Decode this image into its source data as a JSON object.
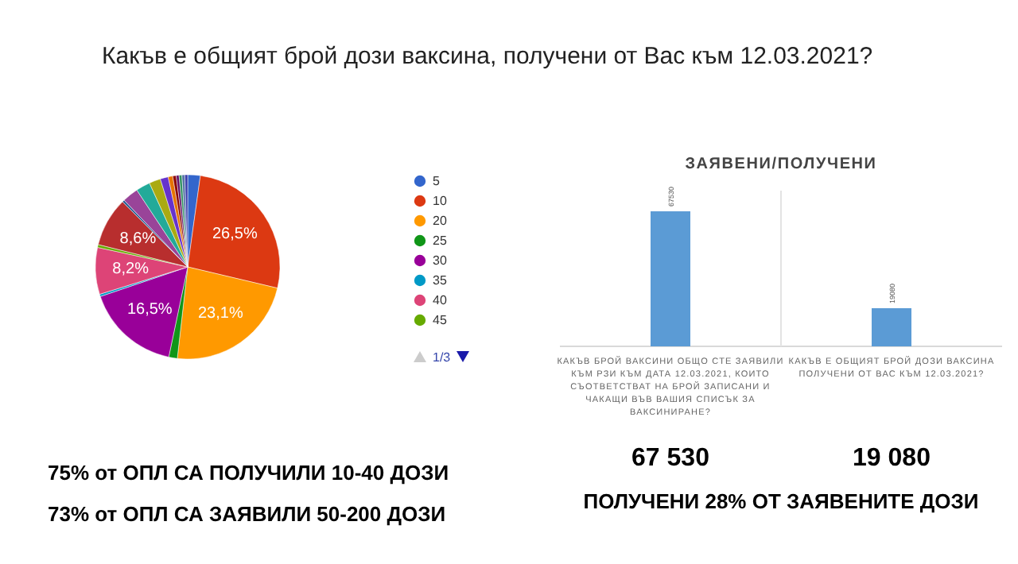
{
  "chart_data": [
    {
      "type": "pie",
      "title": "Какъв е общият брой дози ваксина, получени от Вас към 12.03.2021?",
      "categories": [
        "5",
        "10",
        "20",
        "25",
        "30",
        "35",
        "40",
        "45",
        null,
        null,
        null,
        null,
        null,
        null,
        null,
        null,
        null,
        null,
        null,
        null
      ],
      "values": [
        2.2,
        26.5,
        23.1,
        1.5,
        16.5,
        0.4,
        8.2,
        0.5,
        8.6,
        0.4,
        2.8,
        2.5,
        2.0,
        1.4,
        0.8,
        0.6,
        0.5,
        0.5,
        0.5,
        0.5
      ],
      "colors": [
        "#3366cc",
        "#dc3912",
        "#ff9900",
        "#109618",
        "#990099",
        "#0099c6",
        "#dd4477",
        "#66aa00",
        "#b82e2e",
        "#316395",
        "#994499",
        "#22aa99",
        "#aaaa11",
        "#6633cc",
        "#e67300",
        "#8b0707",
        "#651067",
        "#329262",
        "#5574a6",
        "#3b3eac"
      ],
      "value_labels": [
        null,
        "26,5%",
        "23,1%",
        null,
        "16,5%",
        null,
        "8,2%",
        null,
        "8,6%",
        null,
        null,
        null,
        null,
        null,
        null,
        null,
        null,
        null,
        null,
        null
      ],
      "legend": "right",
      "annotations": [
        "75% от ОПЛ СА ПОЛУЧИЛИ 10-40 ДОЗИ",
        "73% от ОПЛ СА ЗАЯВИЛИ  50-200 ДОЗИ",
        "1/3"
      ]
    },
    {
      "type": "bar",
      "title": "ЗАЯВЕНИ/ПОЛУЧЕНИ",
      "categories": [
        "КАКЪВ БРОЙ ВАКСИНИ ОБЩО СТЕ ЗАЯВИЛИ КЪМ РЗИ КЪМ ДАТА 12.03.2021, КОИТО СЪОТВЕТСТВАТ НА БРОЙ ЗАПИСАНИ И ЧАКАЩИ ВЪВ ВАШИЯ СПИСЪК ЗА ВАКСИНИРАНЕ?",
        "КАКЪВ Е ОБЩИЯТ БРОЙ ДОЗИ ВАКСИНА ПОЛУЧЕНИ ОТ ВАС КЪМ 12.03.2021?"
      ],
      "values": [
        67530,
        19080
      ],
      "color": "#5b9bd5",
      "data_labels": true,
      "annotations": [
        "67 530",
        "19 080",
        "ПОЛУЧЕНИ 28% ОТ ЗАЯВЕНИТЕ ДОЗИ"
      ]
    }
  ]
}
